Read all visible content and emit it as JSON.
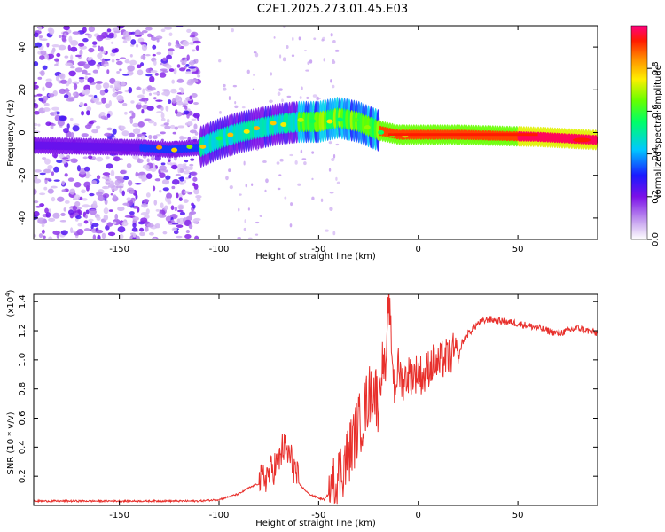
{
  "title": "C2E1.2025.273.01.45.E03",
  "chart_data": [
    {
      "type": "heatmap",
      "name": "spectrogram",
      "xlabel": "Height of straight line (km)",
      "ylabel": "Frequency (Hz)",
      "xlim": [
        -193,
        90
      ],
      "ylim": [
        -50,
        50
      ],
      "xticks": [
        -150,
        -100,
        -50,
        0,
        50
      ],
      "xtick_labels": [
        "-150",
        "-100",
        "-50",
        "0",
        "50"
      ],
      "yticks": [
        -40,
        -20,
        0,
        20,
        40
      ],
      "ytick_labels": [
        "-40",
        "-20",
        "0",
        "20",
        "40"
      ],
      "ridge": {
        "x": [
          -193,
          -140,
          -125,
          -110,
          -100,
          -90,
          -80,
          -70,
          -60,
          -50,
          -45,
          -40,
          -35,
          -30,
          -25,
          -20,
          -15,
          -10,
          -5,
          0,
          20,
          40,
          60,
          80,
          90
        ],
        "frequency": [
          -6,
          -7,
          -8,
          -7,
          -3,
          0,
          2,
          4,
          5,
          5,
          6,
          7,
          6,
          5,
          3,
          1,
          0,
          -1,
          -1,
          -1,
          -1,
          -1.5,
          -2,
          -3,
          -3.5
        ]
      },
      "noise_region": [
        -193,
        -110
      ]
    },
    {
      "type": "colorbar",
      "name": "colorbar",
      "label": "Normalized spectral amplitude",
      "range": [
        0.0,
        1.0
      ],
      "ticks": [
        0.0,
        0.2,
        0.4,
        0.6,
        0.8
      ],
      "tick_labels": [
        "0.0",
        "0.2",
        "0.4",
        "0.6",
        "0.8"
      ]
    },
    {
      "type": "line",
      "name": "snr",
      "xlabel": "Height of straight line (km)",
      "ylabel": "SNR (10 * v/v)",
      "yscale_label": "(x10",
      "yscale_exp": "4",
      "xlim": [
        -193,
        90
      ],
      "ylim": [
        0,
        1.45
      ],
      "xticks": [
        -150,
        -100,
        -50,
        0,
        50
      ],
      "xtick_labels": [
        "-150",
        "-100",
        "-50",
        "0",
        "50"
      ],
      "yticks": [
        0.2,
        0.4,
        0.6,
        0.8,
        1.0,
        1.2,
        1.4
      ],
      "ytick_labels": [
        "0.2",
        "0.4",
        "0.6",
        "0.8",
        "1.0",
        "1.2",
        "1.4"
      ],
      "color": "#e8302c",
      "series": [
        {
          "name": "SNR",
          "x": [
            -193,
            -150,
            -110,
            -100,
            -90,
            -85,
            -80,
            -75,
            -70,
            -68,
            -65,
            -62,
            -60,
            -55,
            -50,
            -47,
            -44,
            -40,
            -35,
            -30,
            -28,
            -25,
            -22,
            -20,
            -18,
            -16,
            -15,
            -12,
            -10,
            -8,
            -5,
            -2,
            0,
            3,
            5,
            8,
            10,
            12,
            15,
            18,
            20,
            22,
            25,
            30,
            35,
            40,
            50,
            60,
            70,
            80,
            85,
            90
          ],
          "y": [
            0.03,
            0.03,
            0.03,
            0.04,
            0.08,
            0.12,
            0.15,
            0.22,
            0.3,
            0.4,
            0.35,
            0.25,
            0.15,
            0.08,
            0.05,
            0.04,
            0.1,
            0.2,
            0.35,
            0.55,
            0.6,
            0.75,
            0.8,
            0.7,
            1.0,
            0.9,
            1.45,
            0.8,
            0.95,
            0.85,
            0.9,
            0.9,
            0.92,
            0.88,
            0.95,
            0.98,
            0.96,
            1.0,
            1.02,
            1.05,
            1.0,
            1.12,
            1.18,
            1.25,
            1.28,
            1.27,
            1.25,
            1.22,
            1.18,
            1.22,
            1.2,
            1.18
          ]
        }
      ]
    }
  ]
}
